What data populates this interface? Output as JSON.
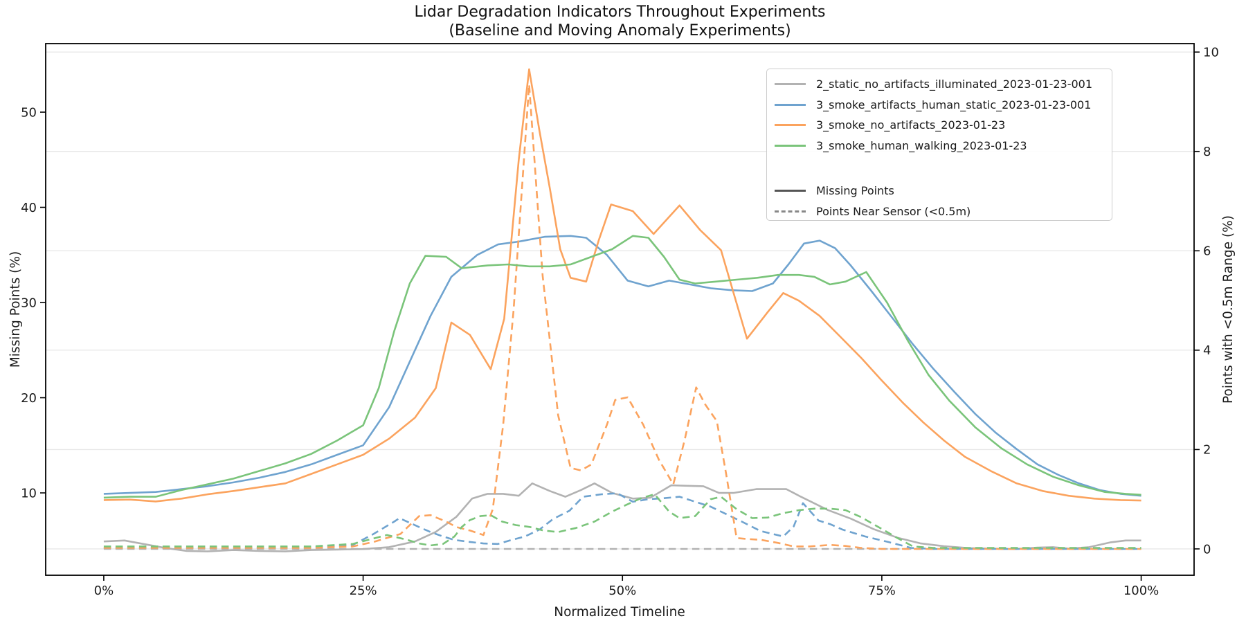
{
  "chart_data": {
    "type": "line",
    "title": "Lidar Degradation Indicators Throughout Experiments",
    "subtitle": "(Baseline and Moving Anomaly Experiments)",
    "xlabel": "Normalized Timeline",
    "ylabel_left": "Missing Points (%)",
    "ylabel_right": "Points with <0.5m Range (%)",
    "grid": "horizontal gridlines at right-axis ticks",
    "legend_position": "upper right",
    "xlim": [
      -5.6,
      105.1
    ],
    "ylim_left": [
      1.35,
      57.2
    ],
    "ylim_right": [
      -0.53,
      10.17
    ],
    "x_ticks": [
      {
        "v": 0,
        "label": "0%"
      },
      {
        "v": 25,
        "label": "25%"
      },
      {
        "v": 50,
        "label": "50%"
      },
      {
        "v": 75,
        "label": "75%"
      },
      {
        "v": 100,
        "label": "100%"
      }
    ],
    "left_ticks": [
      {
        "v": 10,
        "label": "10"
      },
      {
        "v": 20,
        "label": "20"
      },
      {
        "v": 30,
        "label": "30"
      },
      {
        "v": 40,
        "label": "40"
      },
      {
        "v": 50,
        "label": "50"
      }
    ],
    "right_ticks": [
      {
        "v": 0,
        "label": "0"
      },
      {
        "v": 2,
        "label": "2"
      },
      {
        "v": 4,
        "label": "4"
      },
      {
        "v": 6,
        "label": "6"
      },
      {
        "v": 8,
        "label": "8"
      },
      {
        "v": 10,
        "label": "10"
      }
    ],
    "legend": {
      "series": [
        {
          "label": "2_static_no_artifacts_illuminated_2023-01-23-001",
          "color": "#b2b2b2"
        },
        {
          "label": "3_smoke_artifacts_human_static_2023-01-23-001",
          "color": "#6fa3cf"
        },
        {
          "label": "3_smoke_no_artifacts_2023-01-23",
          "color": "#fba35e"
        },
        {
          "label": "3_smoke_human_walking_2023-01-23",
          "color": "#7ac47a"
        }
      ],
      "modes": [
        {
          "label": "Missing Points",
          "style": "solid",
          "color": "#555555"
        },
        {
          "label": "Points Near Sensor (<0.5m)",
          "style": "dashed",
          "color": "#888888"
        }
      ]
    },
    "series": [
      {
        "id": "static-illuminated-missing",
        "experiment": "2_static_no_artifacts_illuminated_2023-01-23-001",
        "metric": "Missing Points",
        "axis": "left",
        "style": "solid",
        "color": "#b2b2b2",
        "x": [
          0,
          2,
          4,
          6,
          8,
          10,
          12.5,
          15,
          17.5,
          20,
          22.5,
          25,
          27.5,
          30,
          32,
          34,
          35.5,
          37,
          38.5,
          40,
          41.3,
          43,
          44.5,
          46,
          47.3,
          49,
          51,
          52.7,
          54.7,
          56,
          57.8,
          59.3,
          60.7,
          62.9,
          64.5,
          65.8,
          67.2,
          69.8,
          72,
          74.2,
          76.5,
          78.7,
          81,
          83.4,
          85.5,
          87.8,
          90,
          91.5,
          93,
          95,
          97,
          98.5,
          100
        ],
        "y": [
          4.9,
          5.0,
          4.6,
          4.2,
          3.9,
          3.85,
          4.0,
          3.9,
          3.85,
          4.0,
          4.05,
          4.1,
          4.3,
          4.9,
          5.9,
          7.5,
          9.4,
          9.9,
          9.9,
          9.7,
          11.0,
          10.2,
          9.6,
          10.3,
          11.0,
          10.0,
          9.4,
          9.5,
          10.8,
          10.75,
          10.7,
          10.0,
          10.0,
          10.4,
          10.4,
          10.4,
          9.6,
          8.2,
          7.3,
          6.2,
          5.3,
          4.7,
          4.4,
          4.2,
          4.15,
          4.1,
          4.25,
          4.3,
          4.15,
          4.3,
          4.8,
          5.0,
          5.0
        ]
      },
      {
        "id": "static-illuminated-near",
        "experiment": "2_static_no_artifacts_illuminated_2023-01-23-001",
        "metric": "Points Near Sensor (<0.5m)",
        "axis": "right",
        "style": "dashed",
        "color": "#b2b2b2",
        "x": [
          0,
          25,
          50,
          75,
          100
        ],
        "y": [
          0.0,
          0.0,
          0.0,
          0.0,
          0.0
        ]
      },
      {
        "id": "smoke-artifacts-human-static-missing",
        "experiment": "3_smoke_artifacts_human_static_2023-01-23-001",
        "metric": "Missing Points",
        "axis": "left",
        "style": "solid",
        "color": "#6fa3cf",
        "x": [
          0,
          2.5,
          5,
          7.5,
          10,
          12.5,
          15,
          17.5,
          20,
          22.5,
          25,
          27.5,
          30,
          31.5,
          33.5,
          36,
          38,
          40,
          42.5,
          45,
          46.5,
          48.5,
          50.5,
          52.5,
          54.5,
          56.5,
          58.5,
          60.5,
          62.5,
          64.5,
          66,
          67.5,
          69,
          70.5,
          72,
          74,
          76,
          78,
          80,
          82,
          84,
          86,
          88,
          90,
          92,
          94,
          96,
          98,
          100
        ],
        "y": [
          9.9,
          10.0,
          10.1,
          10.4,
          10.7,
          11.1,
          11.6,
          12.2,
          13.0,
          14.0,
          15.0,
          19.0,
          25.0,
          28.6,
          32.7,
          35.0,
          36.1,
          36.4,
          36.9,
          37.0,
          36.8,
          35.0,
          32.3,
          31.7,
          32.3,
          31.9,
          31.5,
          31.3,
          31.2,
          32.0,
          34.0,
          36.2,
          36.5,
          35.7,
          33.9,
          31.2,
          28.4,
          25.6,
          23.0,
          20.6,
          18.3,
          16.3,
          14.6,
          13.0,
          11.9,
          11.0,
          10.3,
          9.9,
          9.7
        ]
      },
      {
        "id": "smoke-artifacts-human-static-near",
        "experiment": "3_smoke_artifacts_human_static_2023-01-23-001",
        "metric": "Points Near Sensor (<0.5m)",
        "axis": "right",
        "style": "dashed",
        "color": "#6fa3cf",
        "x": [
          0,
          5,
          10,
          15,
          20,
          24,
          26,
          28,
          28.5,
          30.4,
          31.5,
          32.7,
          33.8,
          35.3,
          36.6,
          38,
          39.3,
          40.6,
          42,
          43.3,
          44.9,
          46.2,
          48,
          49.5,
          51,
          52.5,
          54,
          55.5,
          57,
          58.5,
          60,
          61.5,
          63.3,
          65.5,
          66.5,
          67.4,
          68.9,
          70,
          71.2,
          73.4,
          75.6,
          77.8,
          80,
          85,
          90,
          95,
          100
        ],
        "y": [
          0.02,
          0.02,
          0.02,
          0.02,
          0.03,
          0.08,
          0.3,
          0.55,
          0.62,
          0.44,
          0.34,
          0.25,
          0.18,
          0.14,
          0.11,
          0.1,
          0.18,
          0.25,
          0.39,
          0.6,
          0.77,
          1.05,
          1.1,
          1.12,
          0.95,
          1.0,
          1.02,
          1.05,
          0.95,
          0.85,
          0.7,
          0.55,
          0.36,
          0.25,
          0.45,
          0.92,
          0.57,
          0.5,
          0.39,
          0.25,
          0.14,
          0.02,
          0.0,
          0.0,
          0.0,
          0.0,
          0.0
        ]
      },
      {
        "id": "smoke-no-artifacts-missing",
        "experiment": "3_smoke_no_artifacts_2023-01-23",
        "metric": "Missing Points",
        "axis": "left",
        "style": "solid",
        "color": "#fba35e",
        "x": [
          0,
          2.5,
          5,
          7.5,
          10,
          12.5,
          15,
          17.5,
          20,
          22.5,
          25,
          27.5,
          30,
          32,
          33.5,
          35.3,
          37.3,
          38.6,
          40,
          41,
          42,
          43,
          44,
          45,
          46.5,
          47.7,
          48.9,
          51,
          53,
          55.5,
          57.5,
          59.5,
          62,
          64,
          65.5,
          67,
          69,
          71,
          73,
          75,
          77,
          79,
          81,
          83,
          85.5,
          88,
          90.5,
          93,
          95.5,
          98,
          100
        ],
        "y": [
          9.25,
          9.3,
          9.1,
          9.4,
          9.85,
          10.2,
          10.6,
          11.0,
          12.0,
          13.0,
          14.0,
          15.7,
          17.9,
          21.0,
          27.9,
          26.6,
          23.0,
          28.3,
          45.0,
          54.5,
          48.0,
          42.0,
          35.6,
          32.6,
          32.2,
          36.5,
          40.3,
          39.6,
          37.2,
          40.2,
          37.6,
          35.5,
          26.2,
          29.0,
          31.0,
          30.2,
          28.6,
          26.4,
          24.2,
          21.8,
          19.5,
          17.4,
          15.5,
          13.8,
          12.3,
          11.0,
          10.2,
          9.7,
          9.4,
          9.25,
          9.2
        ]
      },
      {
        "id": "smoke-no-artifacts-near",
        "experiment": "3_smoke_no_artifacts_2023-01-23",
        "metric": "Points Near Sensor (<0.5m)",
        "axis": "right",
        "style": "dashed",
        "color": "#fba35e",
        "x": [
          0,
          5,
          10,
          15,
          20,
          24,
          26,
          28.6,
          30.4,
          31.5,
          33,
          34,
          35.3,
          36.6,
          37.5,
          38.5,
          39.5,
          41,
          42.3,
          43.8,
          45,
          46,
          47,
          48.5,
          49.3,
          50.5,
          52,
          53.5,
          54.9,
          56,
          57.1,
          58,
          59.1,
          60,
          61,
          62,
          63.4,
          65,
          66.5,
          68,
          70,
          71.5,
          73,
          75,
          80,
          85,
          90,
          95,
          100
        ],
        "y": [
          0.02,
          0.02,
          0.02,
          0.02,
          0.02,
          0.05,
          0.14,
          0.3,
          0.66,
          0.68,
          0.55,
          0.44,
          0.37,
          0.28,
          0.8,
          2.5,
          4.8,
          9.35,
          5.5,
          2.69,
          1.63,
          1.58,
          1.7,
          2.5,
          3.0,
          3.05,
          2.5,
          1.8,
          1.3,
          2.2,
          3.25,
          2.9,
          2.57,
          1.5,
          0.22,
          0.2,
          0.18,
          0.12,
          0.05,
          0.05,
          0.08,
          0.06,
          0.02,
          0.0,
          0.0,
          0.0,
          0.0,
          0.0,
          0.0
        ]
      },
      {
        "id": "smoke-human-walking-missing",
        "experiment": "3_smoke_human_walking_2023-01-23",
        "metric": "Missing Points",
        "axis": "left",
        "style": "solid",
        "color": "#7ac47a",
        "x": [
          0,
          2.5,
          5,
          7.5,
          10,
          12.5,
          15,
          17.5,
          20,
          22.5,
          25,
          26.5,
          28,
          29.5,
          31,
          33,
          34.5,
          37,
          39,
          41,
          43,
          45,
          47,
          49,
          51,
          52.5,
          54,
          55.5,
          57,
          59,
          61,
          63,
          65,
          67,
          68.5,
          70,
          71.5,
          73.5,
          75.5,
          77.5,
          79.5,
          81.5,
          84,
          86.5,
          89,
          91.5,
          94,
          96.5,
          98.5,
          100
        ],
        "y": [
          9.5,
          9.6,
          9.6,
          10.3,
          10.9,
          11.5,
          12.3,
          13.1,
          14.1,
          15.5,
          17.1,
          21.0,
          27.0,
          32.0,
          34.9,
          34.8,
          33.6,
          33.9,
          34.0,
          33.8,
          33.8,
          34.0,
          34.8,
          35.6,
          37.0,
          36.8,
          34.8,
          32.4,
          32.0,
          32.2,
          32.4,
          32.6,
          32.9,
          32.9,
          32.7,
          31.9,
          32.2,
          33.2,
          30.0,
          26.0,
          22.4,
          19.7,
          16.9,
          14.7,
          13.0,
          11.7,
          10.8,
          10.1,
          9.9,
          9.8
        ]
      },
      {
        "id": "smoke-human-walking-near",
        "experiment": "3_smoke_human_walking_2023-01-23",
        "metric": "Points Near Sensor (<0.5m)",
        "axis": "right",
        "style": "dashed",
        "color": "#7ac47a",
        "x": [
          0,
          5,
          10,
          15,
          20,
          24,
          26,
          27.3,
          29.3,
          30.4,
          31.5,
          32.7,
          33.8,
          34.5,
          35.3,
          36.3,
          37.3,
          38.4,
          39.7,
          41.1,
          42.4,
          43.8,
          45.5,
          47.3,
          49,
          50.5,
          51.8,
          53.1,
          54.5,
          55.5,
          57,
          58.5,
          59.5,
          61,
          62.5,
          64,
          65.5,
          67,
          68.5,
          70,
          71.5,
          73,
          75,
          76.5,
          78,
          80,
          85,
          90,
          95,
          100
        ],
        "y": [
          0.05,
          0.05,
          0.05,
          0.05,
          0.05,
          0.1,
          0.21,
          0.28,
          0.18,
          0.11,
          0.07,
          0.1,
          0.25,
          0.44,
          0.58,
          0.66,
          0.68,
          0.55,
          0.48,
          0.44,
          0.37,
          0.34,
          0.42,
          0.55,
          0.75,
          0.9,
          1.02,
          1.1,
          0.75,
          0.62,
          0.66,
          1.0,
          1.05,
          0.8,
          0.62,
          0.63,
          0.72,
          0.78,
          0.81,
          0.81,
          0.78,
          0.64,
          0.4,
          0.22,
          0.05,
          0.02,
          0.02,
          0.02,
          0.02,
          0.02
        ]
      }
    ]
  }
}
